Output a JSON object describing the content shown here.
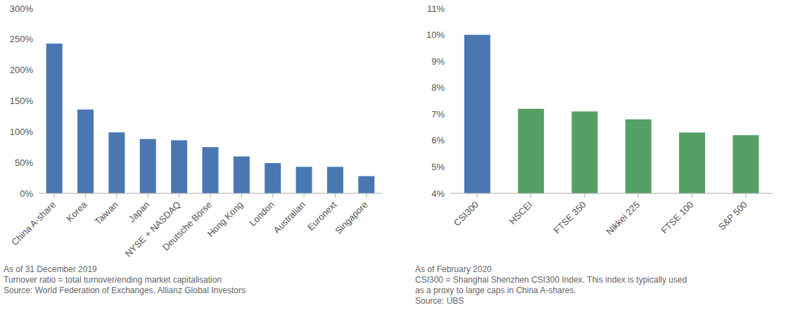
{
  "chart_data": [
    {
      "type": "bar",
      "categories": [
        "China A-share",
        "Korea",
        "Taiwan",
        "Japan",
        "NYSE + NASDAQ",
        "Deutsche Börse",
        "Hong Kong",
        "London",
        "Australian",
        "Euronext",
        "Singapore"
      ],
      "values": [
        243,
        136,
        99,
        88,
        86,
        75,
        60,
        49,
        43,
        43,
        28
      ],
      "color": "#4a77b2",
      "ylim": [
        0,
        300
      ],
      "yticks": [
        {
          "value": 0,
          "label": "0%"
        },
        {
          "value": 50,
          "label": "50%"
        },
        {
          "value": 100,
          "label": "100%"
        },
        {
          "value": 150,
          "label": "150%"
        },
        {
          "value": 200,
          "label": "200%"
        },
        {
          "value": 250,
          "label": "250%"
        },
        {
          "value": 300,
          "label": "300%"
        }
      ],
      "grid": false,
      "notes": [
        "As of 31 December 2019",
        "Turnover ratio = total turnover/ending market capitalisation",
        "Source: World Federation of Exchanges, Allianz Global Investors"
      ]
    },
    {
      "type": "bar",
      "categories": [
        "CSI300",
        "HSCEI",
        "FTSE 350",
        "Nikkei 225",
        "FTSE 100",
        "S&P 500"
      ],
      "values": [
        10.0,
        7.2,
        7.1,
        6.8,
        6.3,
        6.2
      ],
      "colors": [
        "#4a77b2",
        "#55a063",
        "#55a063",
        "#55a063",
        "#55a063",
        "#55a063"
      ],
      "ylim": [
        4,
        11
      ],
      "yticks": [
        {
          "value": 4,
          "label": "4%"
        },
        {
          "value": 5,
          "label": "5%"
        },
        {
          "value": 6,
          "label": "6%"
        },
        {
          "value": 7,
          "label": "7%"
        },
        {
          "value": 8,
          "label": "8%"
        },
        {
          "value": 9,
          "label": "9%"
        },
        {
          "value": 10,
          "label": "10%"
        },
        {
          "value": 11,
          "label": "11%"
        }
      ],
      "grid": false,
      "notes": [
        "As of February 2020",
        "CSI300 = Shanghai Shenzhen CSI300 Index. This index is typically used",
        "as a proxy to large caps in China A-shares.",
        "Source: UBS"
      ]
    }
  ]
}
